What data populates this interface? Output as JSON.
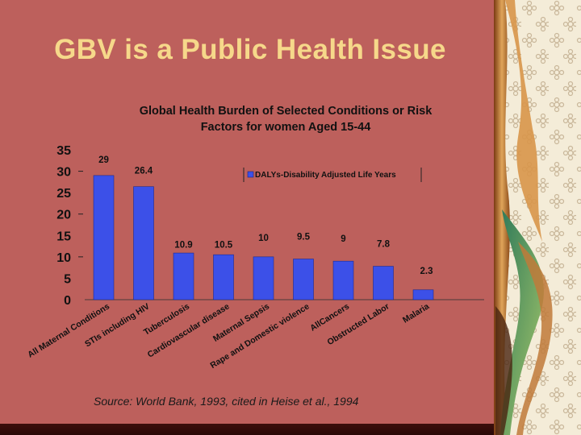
{
  "slide": {
    "title": "GBV is a Public Health Issue",
    "source": "Source: World Bank, 1993, cited in Heise et al., 1994"
  },
  "colors": {
    "background": "#bd605c",
    "title": "#f6d88a",
    "bar": "#3c50e8"
  },
  "chart_data": {
    "type": "bar",
    "title_lines": [
      "Global Health Burden of Selected Conditions or Risk",
      "Factors for women Aged 15-44"
    ],
    "legend": "DALYs-Disability Adjusted Life Years",
    "categories": [
      "All Maternal Conditions",
      "STIs including HIV",
      "Tuberculosis",
      "Cardiovascular disease",
      "Maternal Sepsis",
      "Rape and Domestic violence",
      "AllCancers",
      "Obstructed Labor",
      "Malaria"
    ],
    "values": [
      29,
      26.4,
      10.9,
      10.5,
      10,
      9.5,
      9,
      7.8,
      2.3
    ],
    "value_labels": [
      "29",
      "26.4",
      "10.9",
      "10.5",
      "10",
      "9.5",
      "9",
      "7.8",
      "2.3"
    ],
    "yticks": [
      "0",
      "5",
      "10",
      "15",
      "20",
      "25",
      "30",
      "35"
    ],
    "ylim": [
      0,
      35
    ],
    "xlabel": "",
    "ylabel": ""
  }
}
